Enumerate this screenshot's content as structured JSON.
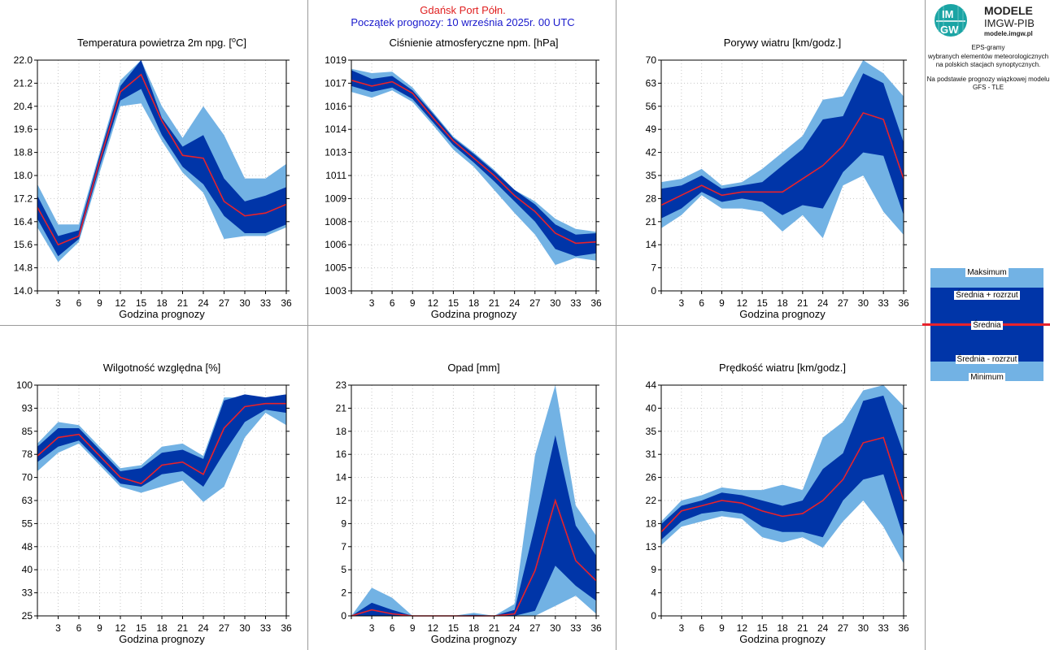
{
  "header": {
    "location": "Gdańsk Port Półn.",
    "forecast_start": "Początek prognozy: 10 września 2025r. 00 UTC"
  },
  "logo": {
    "letters": "IMGW",
    "line1": "MODELE",
    "line2": "IMGW-PIB",
    "url": "modele.imgw.pl"
  },
  "side_info": {
    "line1": "EPS-gramy",
    "line2": "wybranych elementów meteorologicznych",
    "line3": "na polskich stacjach  synoptycznych.",
    "line4": "Na podstawie prognozy wiązkowej modelu",
    "line5": "GFS - TLE"
  },
  "legend": {
    "max": "Maksimum",
    "mean_plus": "Średnia + rozrzut",
    "mean": "Średnia",
    "mean_minus": "Średnia - rozrzut",
    "min": "Minimum"
  },
  "colors": {
    "outer_band": "#72b2e4",
    "inner_band": "#0035a8",
    "mean_line": "#e8222b",
    "title_red": "#e02020",
    "title_blue": "#1a1acc"
  },
  "chart_data": [
    {
      "type": "area",
      "title": "Temperatura powietrza 2m npg. [°C]",
      "title_pre": "Temperatura powietrza 2m npg. [",
      "title_sup": "o",
      "title_post": "C]",
      "xlabel": "Godzina prognozy",
      "x": [
        0,
        3,
        6,
        9,
        12,
        15,
        18,
        21,
        24,
        27,
        30,
        33,
        36
      ],
      "ylim": [
        14.0,
        22.0
      ],
      "yticks": [
        "14.0",
        "14.8",
        "15.6",
        "16.4",
        "17.2",
        "18.0",
        "18.8",
        "19.6",
        "20.4",
        "21.2",
        "22.0"
      ],
      "series": [
        {
          "name": "Maksimum",
          "values": [
            17.7,
            16.3,
            16.3,
            18.8,
            21.3,
            22.0,
            20.4,
            19.3,
            20.4,
            19.4,
            17.9,
            17.9,
            18.4
          ]
        },
        {
          "name": "Średnia + rozrzut",
          "values": [
            17.3,
            15.9,
            16.1,
            18.7,
            21.1,
            22.0,
            20.0,
            19.0,
            19.4,
            17.9,
            17.1,
            17.3,
            17.6
          ]
        },
        {
          "name": "Średnia",
          "values": [
            16.9,
            15.6,
            15.9,
            18.5,
            20.9,
            21.5,
            19.9,
            18.7,
            18.6,
            17.1,
            16.6,
            16.7,
            17.0
          ]
        },
        {
          "name": "Średnia - rozrzut",
          "values": [
            16.5,
            15.2,
            15.8,
            18.3,
            20.6,
            21.0,
            19.4,
            18.3,
            17.7,
            16.6,
            16.0,
            16.0,
            16.3
          ]
        },
        {
          "name": "Minimum",
          "values": [
            16.2,
            15.0,
            15.7,
            18.1,
            20.4,
            20.5,
            19.2,
            18.1,
            17.4,
            15.8,
            15.9,
            15.9,
            16.2
          ]
        }
      ]
    },
    {
      "type": "area",
      "title": "Ciśnienie atmosferyczne npm. [hPa]",
      "xlabel": "Godzina prognozy",
      "x": [
        0,
        3,
        6,
        9,
        12,
        15,
        18,
        21,
        24,
        27,
        30,
        33,
        36
      ],
      "ylim": [
        1003,
        1019
      ],
      "yticks": [
        "1003",
        "1005",
        "1006",
        "1008",
        "1009",
        "1011",
        "1013",
        "1014",
        "1016",
        "1017",
        "1019"
      ],
      "series": [
        {
          "name": "Maksimum",
          "values": [
            1018.4,
            1018.1,
            1018.2,
            1017.1,
            1015.4,
            1013.7,
            1012.6,
            1011.4,
            1010.0,
            1009.2,
            1008.0,
            1007.3,
            1007.1
          ]
        },
        {
          "name": "Średnia + rozrzut",
          "values": [
            1018.3,
            1017.7,
            1017.9,
            1016.9,
            1015.3,
            1013.6,
            1012.5,
            1011.3,
            1010.0,
            1009.0,
            1007.6,
            1006.9,
            1007.0
          ]
        },
        {
          "name": "Średnia",
          "values": [
            1017.6,
            1017.2,
            1017.5,
            1016.7,
            1015.0,
            1013.4,
            1012.2,
            1011.0,
            1009.6,
            1008.5,
            1007.0,
            1006.3,
            1006.4
          ]
        },
        {
          "name": "Średnia - rozrzut",
          "values": [
            1017.2,
            1016.8,
            1017.1,
            1016.3,
            1014.7,
            1013.1,
            1011.9,
            1010.6,
            1009.2,
            1007.8,
            1005.9,
            1005.4,
            1005.6
          ]
        },
        {
          "name": "Minimum",
          "values": [
            1016.8,
            1016.4,
            1016.9,
            1016.1,
            1014.5,
            1012.8,
            1011.6,
            1010.0,
            1008.4,
            1006.9,
            1004.8,
            1005.3,
            1005.1
          ]
        }
      ]
    },
    {
      "type": "area",
      "title": "Porywy wiatru [km/godz.]",
      "xlabel": "Godzina prognozy",
      "x": [
        0,
        3,
        6,
        9,
        12,
        15,
        18,
        21,
        24,
        27,
        30,
        33,
        36
      ],
      "ylim": [
        0,
        70
      ],
      "yticks": [
        "0",
        "7",
        "14",
        "21",
        "28",
        "35",
        "42",
        "49",
        "56",
        "63",
        "70"
      ],
      "series": [
        {
          "name": "Maksimum",
          "values": [
            33,
            34,
            37,
            32,
            33,
            37,
            42,
            47,
            58,
            59,
            70,
            66,
            59
          ]
        },
        {
          "name": "Średnia + rozrzut",
          "values": [
            31,
            32,
            35,
            31,
            32,
            33,
            38,
            43,
            52,
            53,
            66,
            63,
            45
          ]
        },
        {
          "name": "Średnia",
          "values": [
            26,
            29,
            32,
            29,
            30,
            30,
            30,
            34,
            38,
            44,
            54,
            52,
            34
          ]
        },
        {
          "name": "Średnia - rozrzut",
          "values": [
            22,
            25,
            30,
            27,
            28,
            27,
            23,
            26,
            25,
            36,
            42,
            41,
            23
          ]
        },
        {
          "name": "Minimum",
          "values": [
            19,
            23,
            29,
            25,
            25,
            24,
            18,
            23,
            16,
            32,
            35,
            24,
            17
          ]
        }
      ]
    },
    {
      "type": "area",
      "title": "Wilgotność względna [%]",
      "xlabel": "Godzina prognozy",
      "x": [
        0,
        3,
        6,
        9,
        12,
        15,
        18,
        21,
        24,
        27,
        30,
        33,
        36
      ],
      "ylim": [
        25,
        100
      ],
      "yticks": [
        "25",
        "33",
        "40",
        "48",
        "55",
        "63",
        "70",
        "78",
        "85",
        "93",
        "100"
      ],
      "series": [
        {
          "name": "Maksimum",
          "values": [
            81,
            88,
            87,
            80,
            73,
            74,
            80,
            81,
            77,
            96,
            96,
            96,
            97
          ]
        },
        {
          "name": "Średnia + rozrzut",
          "values": [
            80,
            86,
            86,
            79,
            72,
            73,
            78,
            79,
            76,
            95,
            97,
            96,
            97
          ]
        },
        {
          "name": "Średnia",
          "values": [
            77,
            83,
            84,
            77,
            70,
            68,
            74,
            75,
            71,
            86,
            93,
            94,
            94
          ]
        },
        {
          "name": "Średnia - rozrzut",
          "values": [
            75,
            80,
            82,
            75,
            68,
            67,
            71,
            72,
            67,
            78,
            88,
            92,
            91
          ]
        },
        {
          "name": "Minimum",
          "values": [
            72,
            78,
            81,
            74,
            67,
            65,
            67,
            69,
            62,
            67,
            83,
            91,
            87
          ]
        }
      ]
    },
    {
      "type": "area",
      "title": "Opad [mm]",
      "xlabel": "Godzina prognozy",
      "x": [
        0,
        3,
        6,
        9,
        12,
        15,
        18,
        21,
        24,
        27,
        30,
        33,
        36
      ],
      "ylim": [
        0,
        23
      ],
      "yticks": [
        "0",
        "2",
        "5",
        "7",
        "9",
        "12",
        "14",
        "16",
        "18",
        "21",
        "23"
      ],
      "series": [
        {
          "name": "Maksimum",
          "values": [
            0,
            2.8,
            1.8,
            0,
            0,
            0,
            0.3,
            0,
            1.2,
            16,
            23,
            11,
            8
          ]
        },
        {
          "name": "Średnia + rozrzut",
          "values": [
            0,
            1.3,
            0.6,
            0,
            0,
            0,
            0.1,
            0,
            0.6,
            9,
            18,
            9,
            6
          ]
        },
        {
          "name": "Średnia",
          "values": [
            0,
            0.6,
            0.2,
            0,
            0,
            0,
            0,
            0,
            0.2,
            4.5,
            11.5,
            5.5,
            3.5
          ]
        },
        {
          "name": "Średnia - rozrzut",
          "values": [
            0,
            0,
            0,
            0,
            0,
            0,
            0,
            0,
            0,
            0.5,
            5,
            3,
            1.5
          ]
        },
        {
          "name": "Minimum",
          "values": [
            0,
            0,
            0,
            0,
            0,
            0,
            0,
            0,
            0,
            0,
            1,
            2,
            0.2
          ]
        }
      ]
    },
    {
      "type": "area",
      "title": "Prędkość wiatru [km/godz.]",
      "xlabel": "Godzina prognozy",
      "x": [
        0,
        3,
        6,
        9,
        12,
        15,
        18,
        21,
        24,
        27,
        30,
        33,
        36
      ],
      "ylim": [
        0,
        44
      ],
      "yticks": [
        "0",
        "4",
        "9",
        "13",
        "18",
        "22",
        "26",
        "31",
        "35",
        "40",
        "44"
      ],
      "series": [
        {
          "name": "Maksimum",
          "values": [
            18,
            22,
            23,
            24.5,
            24,
            24,
            25,
            24,
            34,
            37,
            43,
            44,
            40
          ]
        },
        {
          "name": "Średnia + rozrzut",
          "values": [
            17.5,
            21,
            22,
            23.5,
            23,
            22,
            21,
            22,
            28,
            31,
            41,
            42,
            31
          ]
        },
        {
          "name": "Średnia",
          "values": [
            16,
            20,
            21,
            22,
            21.5,
            20,
            19,
            19.5,
            22,
            26,
            33,
            34,
            22
          ]
        },
        {
          "name": "Średnia - rozrzut",
          "values": [
            14.5,
            18,
            19.5,
            20,
            19.5,
            17,
            16,
            16,
            15,
            22,
            26,
            27,
            15
          ]
        },
        {
          "name": "Minimum",
          "values": [
            13.5,
            17,
            18,
            19,
            18.5,
            15,
            14,
            15,
            13,
            18,
            22,
            17,
            10
          ]
        }
      ]
    }
  ]
}
